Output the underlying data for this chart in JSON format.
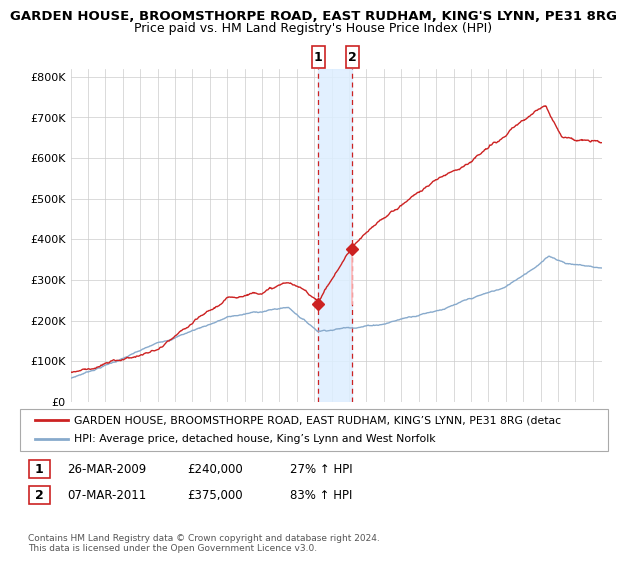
{
  "title1": "GARDEN HOUSE, BROOMSTHORPE ROAD, EAST RUDHAM, KING'S LYNN, PE31 8RG",
  "title2": "Price paid vs. HM Land Registry's House Price Index (HPI)",
  "xlim_start": 1995.0,
  "xlim_end": 2025.5,
  "ylim": [
    0,
    820000
  ],
  "yticks": [
    0,
    100000,
    200000,
    300000,
    400000,
    500000,
    600000,
    700000,
    800000
  ],
  "ytick_labels": [
    "£0",
    "£100K",
    "£200K",
    "£300K",
    "£400K",
    "£500K",
    "£600K",
    "£700K",
    "£800K"
  ],
  "line1_color": "#cc2222",
  "line2_color": "#88aacc",
  "vline1_x": 2009.23,
  "vline2_x": 2011.18,
  "shade_color": "#ddeeff",
  "marker1_x": 2009.23,
  "marker1_y": 240000,
  "marker2_x": 2011.18,
  "marker2_y": 375000,
  "legend_line1": "GARDEN HOUSE, BROOMSTHORPE ROAD, EAST RUDHAM, KING’S LYNN, PE31 8RG (detac",
  "legend_line2": "HPI: Average price, detached house, King’s Lynn and West Norfolk",
  "annotation1_label": "1",
  "annotation1_date": "26-MAR-2009",
  "annotation1_price": "£240,000",
  "annotation1_hpi": "27% ↑ HPI",
  "annotation2_label": "2",
  "annotation2_date": "07-MAR-2011",
  "annotation2_price": "£375,000",
  "annotation2_hpi": "83% ↑ HPI",
  "footnote": "Contains HM Land Registry data © Crown copyright and database right 2024.\nThis data is licensed under the Open Government Licence v3.0.",
  "bg_color": "#ffffff",
  "grid_color": "#cccccc"
}
